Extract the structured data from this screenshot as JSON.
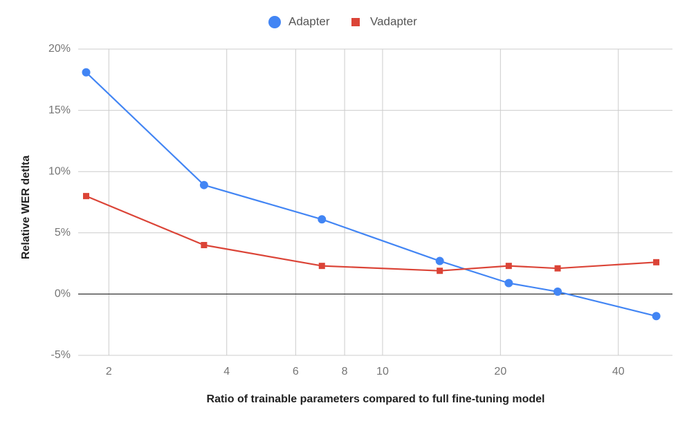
{
  "chart_data": {
    "type": "line",
    "title": "",
    "xlabel": "Ratio of  trainable parameters compared to full fine-tuning model",
    "ylabel": "Relative WER detlta",
    "x_scale": "log",
    "xlim": [
      1.67,
      55
    ],
    "ylim": [
      -5,
      20
    ],
    "x_ticks": [
      2,
      4,
      6,
      8,
      10,
      20,
      40
    ],
    "y_ticks": [
      -5,
      0,
      5,
      10,
      15,
      20
    ],
    "y_tick_labels": [
      "-5%",
      "0%",
      "5%",
      "10%",
      "15%",
      "20%"
    ],
    "grid": true,
    "legend_position": "top-center",
    "series": [
      {
        "name": "Adapter",
        "color": "#4285f4",
        "marker": "circle",
        "x": [
          1.75,
          3.5,
          7,
          14,
          21,
          28,
          50
        ],
        "y": [
          18.1,
          8.9,
          6.1,
          2.7,
          0.9,
          0.2,
          -1.8
        ]
      },
      {
        "name": "Vadapter",
        "color": "#db4437",
        "marker": "square",
        "x": [
          1.75,
          3.5,
          7,
          14,
          21,
          28,
          50
        ],
        "y": [
          8.0,
          4.0,
          2.3,
          1.9,
          2.3,
          2.1,
          2.6
        ]
      }
    ]
  }
}
